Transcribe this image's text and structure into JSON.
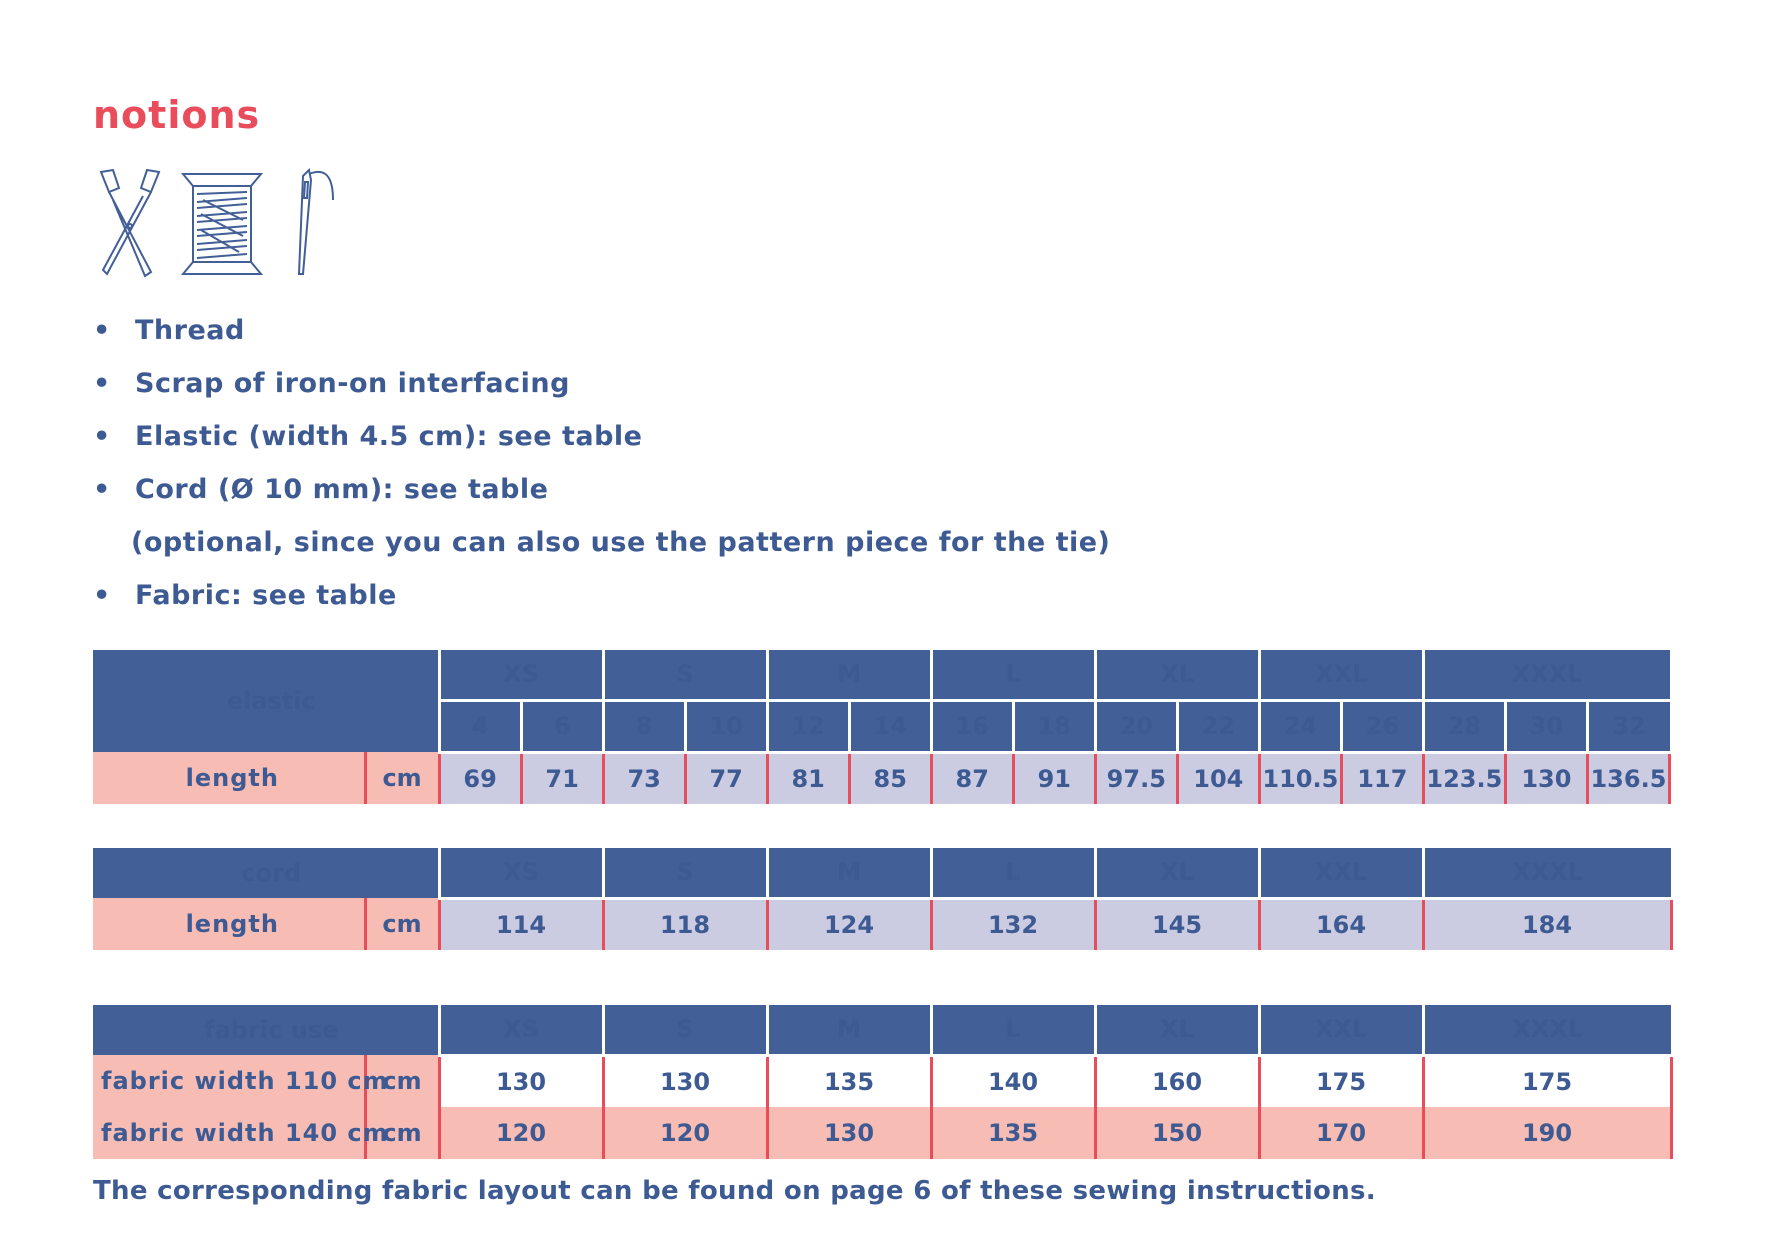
{
  "title": "notions",
  "icons": [
    "scissors-icon",
    "thread-spool-icon",
    "needle-icon"
  ],
  "bullet": "•",
  "list": [
    {
      "text": "Thread"
    },
    {
      "text": "Scrap of iron-on interfacing"
    },
    {
      "text": "Elastic (width 4.5 cm): see table"
    },
    {
      "text": "Cord (Ø 10 mm): see table"
    },
    {
      "note": "(optional, since you can also use the pattern piece for the tie)"
    },
    {
      "text": "Fabric: see table"
    }
  ],
  "elastic": {
    "header": "elastic",
    "sizes": [
      "XS",
      "S",
      "M",
      "L",
      "XL",
      "XXL",
      "XXXL"
    ],
    "numbers": [
      "4",
      "6",
      "8",
      "10",
      "12",
      "14",
      "16",
      "18",
      "20",
      "22",
      "24",
      "26",
      "28",
      "30",
      "32"
    ],
    "row": {
      "label": "length",
      "unit": "cm",
      "values": [
        "69",
        "71",
        "73",
        "77",
        "81",
        "85",
        "87",
        "91",
        "97.5",
        "104",
        "110.5",
        "117",
        "123.5",
        "130",
        "136.5"
      ]
    }
  },
  "cord": {
    "header": "cord",
    "sizes": [
      "XS",
      "S",
      "M",
      "L",
      "XL",
      "XXL",
      "XXXL"
    ],
    "row": {
      "label": "length",
      "unit": "cm",
      "values": [
        "114",
        "118",
        "124",
        "132",
        "145",
        "164",
        "184"
      ]
    }
  },
  "fabric": {
    "header": "fabric use",
    "sizes": [
      "XS",
      "S",
      "M",
      "L",
      "XL",
      "XXL",
      "XXXL"
    ],
    "rows": [
      {
        "label": "fabric width 110 cm",
        "unit": "cm",
        "values": [
          "130",
          "130",
          "135",
          "140",
          "160",
          "175",
          "175"
        ]
      },
      {
        "label": "fabric width 140 cm",
        "unit": "cm",
        "values": [
          "120",
          "120",
          "130",
          "135",
          "150",
          "170",
          "190"
        ]
      }
    ]
  },
  "footer": "The corresponding fabric layout can be found on page 6 of these sewing instructions.",
  "colors": {
    "accent": "#e94d5b",
    "navy": "#425f98",
    "text": "#3d5a93",
    "pink": "#f7bcb4",
    "lavender": "#cbcce2"
  }
}
